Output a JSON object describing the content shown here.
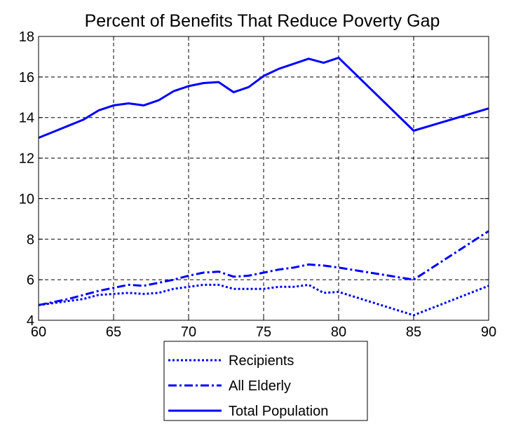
{
  "chart_data": {
    "type": "line",
    "title": "Percent of Benefits That Reduce Poverty Gap",
    "xlim": [
      60,
      90
    ],
    "ylim": [
      4,
      18
    ],
    "x_ticks": [
      60,
      65,
      70,
      75,
      80,
      85,
      90
    ],
    "y_ticks": [
      4,
      6,
      8,
      10,
      12,
      14,
      16,
      18
    ],
    "grid": true,
    "legend_position": "bottom-center",
    "colors": {
      "series": "#0000FF"
    },
    "series": [
      {
        "name": "Recipients",
        "style": "dotted",
        "x": [
          60,
          61,
          62,
          63,
          64,
          65,
          66,
          67,
          68,
          69,
          70,
          71,
          72,
          73,
          74,
          75,
          76,
          77,
          78,
          79,
          80,
          85,
          90
        ],
        "y": [
          4.75,
          4.85,
          4.95,
          5.05,
          5.25,
          5.3,
          5.35,
          5.3,
          5.35,
          5.55,
          5.65,
          5.75,
          5.75,
          5.55,
          5.55,
          5.55,
          5.65,
          5.65,
          5.75,
          5.35,
          5.4,
          4.25,
          5.7
        ]
      },
      {
        "name": "All Elderly",
        "style": "dashdot",
        "x": [
          60,
          61,
          62,
          63,
          64,
          65,
          66,
          67,
          68,
          69,
          70,
          71,
          72,
          73,
          74,
          75,
          76,
          77,
          78,
          79,
          80,
          85,
          90
        ],
        "y": [
          4.75,
          4.9,
          5.05,
          5.25,
          5.45,
          5.6,
          5.75,
          5.7,
          5.85,
          6.0,
          6.2,
          6.35,
          6.4,
          6.15,
          6.2,
          6.35,
          6.5,
          6.6,
          6.75,
          6.7,
          6.6,
          6.0,
          8.4
        ]
      },
      {
        "name": "Total Population",
        "style": "solid",
        "x": [
          60,
          61,
          62,
          63,
          64,
          65,
          66,
          67,
          68,
          69,
          70,
          71,
          72,
          73,
          74,
          75,
          76,
          77,
          78,
          79,
          80,
          85,
          90
        ],
        "y": [
          13.0,
          13.3,
          13.6,
          13.9,
          14.35,
          14.6,
          14.7,
          14.6,
          14.85,
          15.3,
          15.55,
          15.7,
          15.75,
          15.25,
          15.5,
          16.05,
          16.4,
          16.65,
          16.9,
          16.7,
          16.95,
          13.35,
          14.45
        ]
      }
    ]
  }
}
